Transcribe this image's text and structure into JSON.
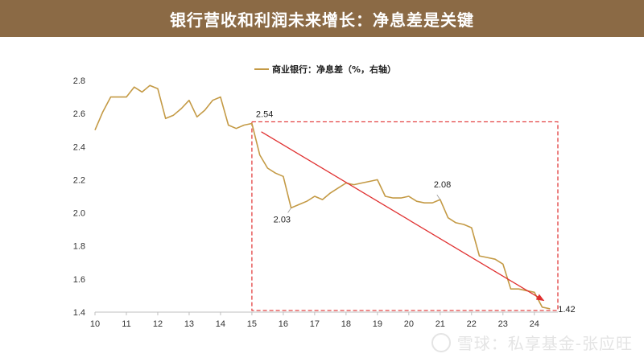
{
  "header": {
    "title": "银行营收和利润未来增长：净息差是关键"
  },
  "watermark": {
    "text": "雪球：私享基金-张应旺"
  },
  "chart_data": {
    "type": "line",
    "title": "",
    "xlabel": "",
    "ylabel": "",
    "legend": {
      "position": "top-center",
      "entries": [
        "商业银行：净息差（%，右轴）"
      ]
    },
    "series": [
      {
        "name": "商业银行：净息差（%，右轴）",
        "color": "#c49a45",
        "x": [
          10.0,
          10.25,
          10.5,
          10.75,
          11.0,
          11.25,
          11.5,
          11.75,
          12.0,
          12.25,
          12.5,
          12.75,
          13.0,
          13.25,
          13.5,
          13.75,
          14.0,
          14.25,
          14.5,
          14.75,
          15.0,
          15.25,
          15.5,
          15.75,
          16.0,
          16.25,
          16.5,
          16.75,
          17.0,
          17.25,
          17.5,
          17.75,
          18.0,
          18.25,
          18.5,
          18.75,
          19.0,
          19.25,
          19.5,
          19.75,
          20.0,
          20.25,
          20.5,
          20.75,
          21.0,
          21.25,
          21.5,
          21.75,
          22.0,
          22.25,
          22.5,
          22.75,
          23.0,
          23.25,
          23.5,
          23.75,
          24.0,
          24.25,
          24.5
        ],
        "values": [
          2.5,
          2.61,
          2.7,
          2.7,
          2.7,
          2.76,
          2.73,
          2.77,
          2.75,
          2.57,
          2.59,
          2.63,
          2.68,
          2.58,
          2.62,
          2.68,
          2.7,
          2.53,
          2.51,
          2.53,
          2.54,
          2.35,
          2.27,
          2.24,
          2.22,
          2.03,
          2.05,
          2.07,
          2.1,
          2.08,
          2.12,
          2.15,
          2.18,
          2.17,
          2.18,
          2.19,
          2.2,
          2.1,
          2.09,
          2.09,
          2.1,
          2.07,
          2.06,
          2.06,
          2.08,
          1.97,
          1.94,
          1.93,
          1.91,
          1.74,
          1.73,
          1.72,
          1.69,
          1.54,
          1.54,
          1.53,
          1.52,
          1.43,
          1.42
        ]
      }
    ],
    "x_ticks": [
      "10",
      "11",
      "12",
      "13",
      "14",
      "15",
      "16",
      "17",
      "18",
      "19",
      "20",
      "21",
      "22",
      "23",
      "24"
    ],
    "y_ticks": [
      "1.4",
      "1.6",
      "1.8",
      "2.0",
      "2.2",
      "2.4",
      "2.6",
      "2.8"
    ],
    "xlim": [
      10,
      24.75
    ],
    "ylim": [
      1.4,
      2.8
    ],
    "grid": false,
    "annotations": [
      {
        "text": "2.54",
        "x": 15.0,
        "y": 2.54
      },
      {
        "text": "2.03",
        "x": 16.25,
        "y": 2.03
      },
      {
        "text": "2.08",
        "x": 21.0,
        "y": 2.08
      },
      {
        "text": "1.42",
        "x": 24.5,
        "y": 1.42
      }
    ],
    "highlight_box": {
      "x": [
        15.0,
        24.75
      ],
      "y": [
        1.41,
        2.55
      ],
      "color": "#e03030"
    },
    "trend_arrow": {
      "from": [
        15.3,
        2.49
      ],
      "to": [
        24.3,
        1.47
      ],
      "color": "#e03030"
    }
  }
}
